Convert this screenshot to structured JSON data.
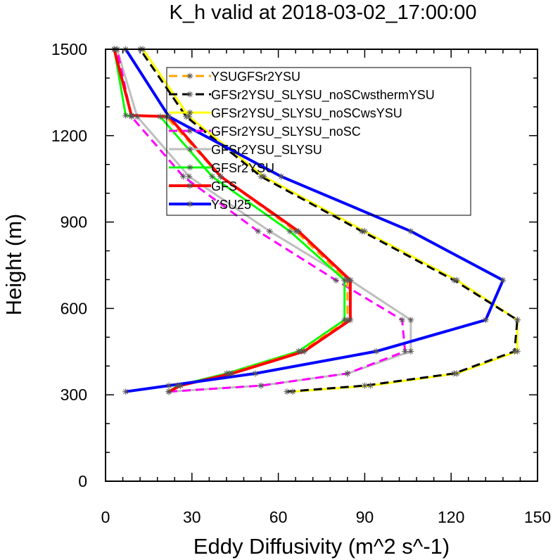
{
  "chart_data": {
    "type": "line",
    "title": "K_h valid at 2018-03-02_17:00:00",
    "xlabel": "Eddy Diffusivity (m^2 s^-1)",
    "ylabel": "Height (m)",
    "xlim": [
      0,
      150
    ],
    "ylim": [
      0,
      1500
    ],
    "xticks": [
      0,
      30,
      60,
      90,
      120,
      150
    ],
    "yticks": [
      0,
      300,
      600,
      900,
      1200,
      1500
    ],
    "xtick_labels": [
      "0",
      "30",
      "60",
      "90",
      "120",
      "150"
    ],
    "ytick_labels": [
      "0",
      "300",
      "600",
      "900",
      "1200",
      "1500"
    ],
    "grid": false,
    "legend_position": "top-left",
    "series": [
      {
        "name": "YSUGFSr2YSU",
        "color": "#ffa500",
        "dash": "dashed",
        "x": [
          22,
          26,
          43,
          68,
          84,
          84,
          66,
          40,
          21,
          9,
          3
        ],
        "y": [
          311,
          332,
          374,
          451,
          560,
          698,
          868,
          1058,
          1266,
          1270,
          1500
        ]
      },
      {
        "name": "GFSr2YSU_SLYSU_noSCwsthermYSU",
        "color": "#000000",
        "dash": "dashed",
        "x": [
          63,
          90,
          121,
          142,
          143,
          121,
          89,
          54,
          28,
          12
        ],
        "y": [
          311,
          332,
          374,
          451,
          560,
          698,
          868,
          1058,
          1266,
          1500
        ]
      },
      {
        "name": "GFSr2YSU_SLYSU_noSCwsYSU",
        "color": "#ffff00",
        "dash": "solid",
        "x": [
          65,
          92,
          122,
          143,
          143,
          122,
          90,
          55,
          29,
          13
        ],
        "y": [
          311,
          332,
          374,
          451,
          560,
          698,
          868,
          1058,
          1266,
          1500
        ]
      },
      {
        "name": "GFSr2YSU_SLYSU_noSC",
        "color": "#ff00ff",
        "dash": "dashed",
        "x": [
          22,
          54,
          84,
          104,
          103,
          80,
          53,
          27,
          9,
          4
        ],
        "y": [
          311,
          332,
          374,
          451,
          560,
          698,
          868,
          1058,
          1266,
          1500
        ]
      },
      {
        "name": "GFSr2YSU_SLYSU",
        "color": "#bebebe",
        "dash": "solid",
        "x": [
          22,
          54,
          84,
          106,
          106,
          85,
          57,
          29,
          11,
          4
        ],
        "y": [
          311,
          332,
          374,
          451,
          560,
          698,
          868,
          1058,
          1266,
          1500
        ]
      },
      {
        "name": "GFSr2YSU",
        "color": "#00ff00",
        "dash": "solid",
        "x": [
          22,
          25,
          42,
          67,
          83,
          83,
          64,
          37,
          19,
          7,
          3
        ],
        "y": [
          311,
          332,
          374,
          451,
          560,
          698,
          868,
          1058,
          1266,
          1270,
          1500
        ]
      },
      {
        "name": "GFS",
        "color": "#ff0000",
        "dash": "solid",
        "x": [
          22,
          26,
          44,
          69,
          85,
          85,
          67,
          40,
          22,
          9,
          3
        ],
        "y": [
          311,
          332,
          374,
          451,
          560,
          698,
          868,
          1058,
          1266,
          1270,
          1500
        ]
      },
      {
        "name": "YSU25",
        "color": "#0000ff",
        "dash": "solid",
        "x": [
          7,
          22,
          52,
          94,
          132,
          138,
          106,
          61,
          22,
          7
        ],
        "y": [
          311,
          332,
          374,
          451,
          560,
          698,
          868,
          1058,
          1266,
          1500
        ]
      }
    ]
  }
}
